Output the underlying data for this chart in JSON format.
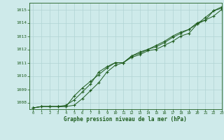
{
  "xlabel": "Graphe pression niveau de la mer (hPa)",
  "ylim": [
    1007.5,
    1015.5
  ],
  "xlim": [
    -0.5,
    23
  ],
  "yticks": [
    1008,
    1009,
    1010,
    1011,
    1012,
    1013,
    1014,
    1015
  ],
  "xticks": [
    0,
    1,
    2,
    3,
    4,
    5,
    6,
    7,
    8,
    9,
    10,
    11,
    12,
    13,
    14,
    15,
    16,
    17,
    18,
    19,
    20,
    21,
    22,
    23
  ],
  "bg_color": "#ceeaea",
  "grid_color_major": "#b0d4d4",
  "grid_color_minor": "#c4e2e2",
  "line_color": "#1e5c1e",
  "series1": {
    "x": [
      0,
      1,
      2,
      3,
      4,
      5,
      6,
      7,
      8,
      9,
      10,
      11,
      12,
      13,
      14,
      15,
      16,
      17,
      18,
      19,
      20,
      21,
      22,
      23
    ],
    "y": [
      1007.6,
      1007.7,
      1007.7,
      1007.7,
      1007.7,
      1007.8,
      1008.3,
      1008.9,
      1009.5,
      1010.3,
      1010.8,
      1011.0,
      1011.4,
      1011.6,
      1011.9,
      1012.0,
      1012.3,
      1012.6,
      1013.0,
      1013.2,
      1013.9,
      1014.2,
      1014.9,
      1015.1
    ]
  },
  "series2": {
    "x": [
      0,
      1,
      2,
      3,
      4,
      5,
      6,
      7,
      8,
      9,
      10,
      11,
      12,
      13,
      14,
      15,
      16,
      17,
      18,
      19,
      20,
      21,
      22,
      23
    ],
    "y": [
      1007.6,
      1007.7,
      1007.7,
      1007.7,
      1007.7,
      1008.5,
      1009.1,
      1009.6,
      1010.1,
      1010.6,
      1011.0,
      1011.0,
      1011.5,
      1011.7,
      1012.0,
      1012.2,
      1012.5,
      1012.9,
      1013.2,
      1013.5,
      1013.9,
      1014.4,
      1014.9,
      1015.2
    ]
  },
  "series3": {
    "x": [
      0,
      1,
      2,
      3,
      4,
      5,
      6,
      7,
      8,
      9,
      10,
      11,
      12,
      13,
      14,
      15,
      16,
      17,
      18,
      19,
      20,
      21,
      22,
      23
    ],
    "y": [
      1007.6,
      1007.7,
      1007.7,
      1007.7,
      1007.8,
      1008.2,
      1008.8,
      1009.4,
      1010.3,
      1010.7,
      1011.0,
      1011.0,
      1011.5,
      1011.8,
      1012.0,
      1012.3,
      1012.6,
      1013.0,
      1013.3,
      1013.5,
      1014.0,
      1014.2,
      1014.5,
      1015.0
    ]
  }
}
